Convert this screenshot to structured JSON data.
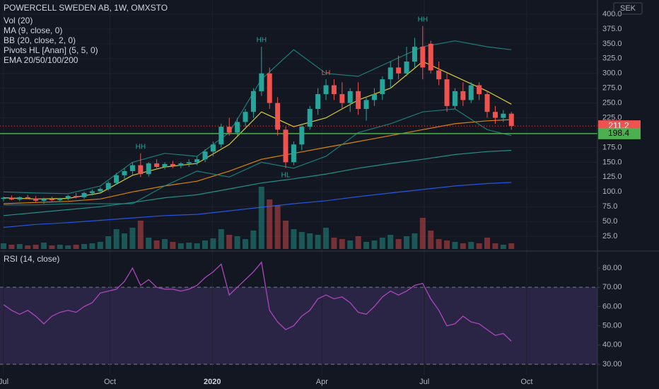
{
  "chart_data": [
    {
      "type": "candlestick",
      "title": "POWERCELL SWEDEN AB, 1W, OMXSTO",
      "indicators": [
        "Vol (20)",
        "MA (9, close, 0)",
        "BB (20, close, 2, 0)",
        "Pivots HL [Anan] (5, 5, 0)",
        "EMA 20/50/100/200"
      ],
      "currency": "SEK",
      "up_color": "#26a69a",
      "down_color": "#ef5350",
      "xlim": [
        -0.44,
        73.68
      ],
      "ylim": [
        0,
        423.9
      ],
      "yticks": [
        {
          "value": 25,
          "label": "25.0"
        },
        {
          "value": 50,
          "label": "50.0"
        },
        {
          "value": 75,
          "label": "75.0"
        },
        {
          "value": 100,
          "label": "100.0"
        },
        {
          "value": 125,
          "label": "125.0"
        },
        {
          "value": 150,
          "label": "150.0"
        },
        {
          "value": 175,
          "label": "175.0"
        },
        {
          "value": 225,
          "label": "225.0"
        },
        {
          "value": 250,
          "label": "250.0"
        },
        {
          "value": 275,
          "label": "275.0"
        },
        {
          "value": 300,
          "label": "300.0"
        },
        {
          "value": 325,
          "label": "325.0"
        },
        {
          "value": 350,
          "label": "350.0"
        },
        {
          "value": 375,
          "label": "375.0"
        },
        {
          "value": 400,
          "label": "400.0"
        }
      ],
      "grid": true,
      "open": [
        88,
        90,
        87,
        91,
        89,
        85,
        88,
        86,
        89,
        93,
        91,
        98,
        101,
        105,
        115,
        128,
        135,
        145,
        130,
        148,
        142,
        147,
        144,
        148,
        150,
        155,
        168,
        180,
        210,
        200,
        218,
        235,
        270,
        300,
        250,
        205,
        150,
        180,
        210,
        240,
        265,
        280,
        265,
        250,
        270,
        240,
        255,
        265,
        290,
        310,
        300,
        320,
        345,
        350,
        305,
        290,
        245,
        270,
        255,
        280,
        265,
        235,
        225,
        232
      ],
      "high": [
        92,
        94,
        92,
        95,
        93,
        90,
        92,
        90,
        95,
        98,
        100,
        104,
        108,
        118,
        132,
        140,
        150,
        165,
        150,
        155,
        150,
        152,
        150,
        155,
        160,
        172,
        185,
        215,
        225,
        225,
        240,
        275,
        345,
        310,
        260,
        210,
        185,
        215,
        245,
        275,
        290,
        290,
        285,
        275,
        285,
        260,
        275,
        295,
        320,
        330,
        345,
        360,
        380,
        355,
        320,
        300,
        275,
        285,
        285,
        285,
        270,
        245,
        238,
        235
      ],
      "low": [
        84,
        86,
        84,
        88,
        82,
        80,
        84,
        83,
        86,
        89,
        88,
        94,
        97,
        102,
        112,
        120,
        128,
        125,
        126,
        140,
        138,
        140,
        140,
        142,
        145,
        150,
        160,
        175,
        195,
        195,
        210,
        225,
        262,
        240,
        195,
        140,
        145,
        170,
        205,
        230,
        255,
        255,
        240,
        235,
        230,
        220,
        245,
        255,
        275,
        290,
        295,
        310,
        290,
        300,
        280,
        235,
        240,
        245,
        250,
        255,
        225,
        215,
        218,
        205
      ],
      "close": [
        90,
        87,
        91,
        89,
        85,
        88,
        86,
        89,
        93,
        91,
        98,
        101,
        105,
        115,
        128,
        135,
        145,
        130,
        148,
        142,
        147,
        144,
        148,
        150,
        155,
        168,
        180,
        210,
        200,
        218,
        235,
        270,
        300,
        250,
        205,
        150,
        180,
        210,
        240,
        265,
        280,
        265,
        250,
        270,
        240,
        255,
        265,
        290,
        310,
        300,
        320,
        345,
        310,
        305,
        290,
        245,
        270,
        255,
        280,
        265,
        235,
        225,
        232,
        211.2
      ],
      "vlim": [
        0,
        100
      ],
      "volume": [
        8,
        6,
        7,
        5,
        6,
        9,
        5,
        6,
        5,
        6,
        7,
        8,
        10,
        18,
        28,
        22,
        30,
        40,
        16,
        12,
        14,
        10,
        8,
        9,
        8,
        12,
        15,
        28,
        20,
        18,
        14,
        26,
        88,
        70,
        62,
        40,
        28,
        24,
        22,
        20,
        30,
        16,
        14,
        12,
        18,
        10,
        12,
        16,
        20,
        14,
        18,
        22,
        44,
        26,
        14,
        12,
        10,
        8,
        10,
        8,
        16,
        8,
        6,
        8
      ],
      "overlay_x": [
        0,
        4,
        8,
        12,
        16,
        20,
        24,
        28,
        32,
        36,
        40,
        44,
        48,
        52,
        56,
        60,
        63
      ],
      "overlays": [
        {
          "color": "#2962ff",
          "values": [
            40,
            45,
            48,
            52,
            56,
            60,
            62,
            68,
            74,
            80,
            85,
            92,
            98,
            104,
            110,
            114,
            116
          ]
        },
        {
          "color": "#26a69a",
          "values": [
            60,
            65,
            70,
            75,
            82,
            90,
            95,
            105,
            115,
            122,
            130,
            140,
            148,
            155,
            163,
            168,
            170
          ]
        },
        {
          "color": "#ff9800",
          "values": [
            80,
            82,
            84,
            88,
            100,
            110,
            118,
            135,
            155,
            165,
            175,
            185,
            195,
            205,
            215,
            220,
            222
          ]
        },
        {
          "color": "#1f8f86",
          "values": [
            100,
            98,
            97,
            110,
            150,
            165,
            160,
            200,
            290,
            340,
            300,
            295,
            320,
            345,
            355,
            345,
            340
          ]
        },
        {
          "color": "#1f8f86",
          "values": [
            78,
            78,
            80,
            80,
            80,
            110,
            135,
            125,
            150,
            140,
            160,
            200,
            215,
            235,
            240,
            205,
            195
          ]
        },
        {
          "color": "#ffeb3b",
          "values": [
            90,
            88,
            89,
            98,
            128,
            142,
            148,
            180,
            235,
            210,
            225,
            255,
            275,
            320,
            295,
            270,
            248
          ]
        }
      ],
      "pivots": [
        {
          "label": "HH",
          "x": 17,
          "y": 165,
          "color": "#26a69a"
        },
        {
          "label": "HH",
          "x": 32,
          "y": 345,
          "color": "#26a69a"
        },
        {
          "label": "HL",
          "x": 35,
          "y": 140,
          "color": "#26a69a"
        },
        {
          "label": "LH",
          "x": 40,
          "y": 290,
          "color": "#ef5350"
        },
        {
          "label": "HH",
          "x": 52,
          "y": 380,
          "color": "#26a69a"
        }
      ],
      "last_price": 211.2,
      "level": 198.4
    },
    {
      "type": "line",
      "title": "RSI (14, close)",
      "color": "#ab47bc",
      "xlim": [
        -0.44,
        73.68
      ],
      "ylim": [
        17.9,
        88.8
      ],
      "yticks": [
        {
          "value": 30,
          "label": "30.00"
        },
        {
          "value": 40,
          "label": "40.00"
        },
        {
          "value": 50,
          "label": "50.00"
        },
        {
          "value": 60,
          "label": "60.00"
        },
        {
          "value": 70,
          "label": "70.00"
        },
        {
          "value": 80,
          "label": "80.00"
        }
      ],
      "band": [
        30,
        70
      ],
      "xticks": [
        {
          "value": 0,
          "label": "Jul"
        },
        {
          "value": 13.2,
          "label": "Oct"
        },
        {
          "value": 25.9,
          "label": "2020"
        },
        {
          "value": 39.5,
          "label": "Apr"
        },
        {
          "value": 52.2,
          "label": "Jul"
        },
        {
          "value": 64.9,
          "label": "Oct"
        }
      ],
      "values": [
        61,
        58,
        56,
        58,
        55,
        51,
        55,
        57,
        58,
        57,
        60,
        62,
        67,
        68,
        69,
        73,
        80,
        71,
        74,
        70,
        69,
        69,
        68,
        69,
        71,
        75,
        78,
        82,
        66,
        70,
        74,
        78,
        83,
        58,
        52,
        48,
        50,
        55,
        58,
        64,
        66,
        64,
        65,
        62,
        57,
        56,
        60,
        65,
        68,
        66,
        68,
        71,
        72,
        64,
        58,
        50,
        51,
        55,
        52,
        51,
        48,
        45,
        46,
        42
      ]
    }
  ]
}
